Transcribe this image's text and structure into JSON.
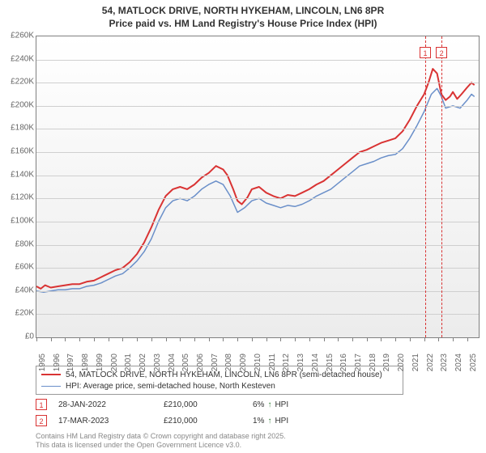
{
  "title_line1": "54, MATLOCK DRIVE, NORTH HYKEHAM, LINCOLN, LN6 8PR",
  "title_line2": "Price paid vs. HM Land Registry's House Price Index (HPI)",
  "chart": {
    "type": "line",
    "background_top": "#ffffff",
    "background_bottom": "#ececec",
    "grid_color": "#cfcfcf",
    "border_color": "#808080",
    "ylim": [
      0,
      260000
    ],
    "ytick_step": 20000,
    "yticks": [
      {
        "v": 0,
        "label": "£0"
      },
      {
        "v": 20000,
        "label": "£20K"
      },
      {
        "v": 40000,
        "label": "£40K"
      },
      {
        "v": 60000,
        "label": "£60K"
      },
      {
        "v": 80000,
        "label": "£80K"
      },
      {
        "v": 100000,
        "label": "£100K"
      },
      {
        "v": 120000,
        "label": "£120K"
      },
      {
        "v": 140000,
        "label": "£140K"
      },
      {
        "v": 160000,
        "label": "£160K"
      },
      {
        "v": 180000,
        "label": "£180K"
      },
      {
        "v": 200000,
        "label": "£200K"
      },
      {
        "v": 220000,
        "label": "£220K"
      },
      {
        "v": 240000,
        "label": "£240K"
      },
      {
        "v": 260000,
        "label": "£260K"
      }
    ],
    "xlim": [
      1995,
      2025.8
    ],
    "xticks": [
      1995,
      1996,
      1997,
      1998,
      1999,
      2000,
      2001,
      2002,
      2003,
      2004,
      2005,
      2006,
      2007,
      2008,
      2009,
      2010,
      2011,
      2012,
      2013,
      2014,
      2015,
      2016,
      2017,
      2018,
      2019,
      2020,
      2021,
      2022,
      2023,
      2024,
      2025
    ],
    "series": [
      {
        "name": "price_paid",
        "label": "54, MATLOCK DRIVE, NORTH HYKEHAM, LINCOLN, LN6 8PR (semi-detached house)",
        "color": "#d93333",
        "width": 2,
        "data": [
          [
            1995.0,
            44000
          ],
          [
            1995.3,
            42000
          ],
          [
            1995.6,
            45000
          ],
          [
            1996.0,
            43000
          ],
          [
            1996.5,
            44000
          ],
          [
            1997.0,
            45000
          ],
          [
            1997.5,
            46000
          ],
          [
            1998.0,
            46000
          ],
          [
            1998.5,
            48000
          ],
          [
            1999.0,
            49000
          ],
          [
            1999.5,
            52000
          ],
          [
            2000.0,
            55000
          ],
          [
            2000.5,
            58000
          ],
          [
            2001.0,
            60000
          ],
          [
            2001.5,
            65000
          ],
          [
            2002.0,
            72000
          ],
          [
            2002.5,
            82000
          ],
          [
            2003.0,
            95000
          ],
          [
            2003.5,
            110000
          ],
          [
            2004.0,
            122000
          ],
          [
            2004.5,
            128000
          ],
          [
            2005.0,
            130000
          ],
          [
            2005.5,
            128000
          ],
          [
            2006.0,
            132000
          ],
          [
            2006.5,
            138000
          ],
          [
            2007.0,
            142000
          ],
          [
            2007.5,
            148000
          ],
          [
            2008.0,
            145000
          ],
          [
            2008.3,
            140000
          ],
          [
            2008.7,
            128000
          ],
          [
            2009.0,
            118000
          ],
          [
            2009.3,
            115000
          ],
          [
            2009.7,
            121000
          ],
          [
            2010.0,
            128000
          ],
          [
            2010.5,
            130000
          ],
          [
            2011.0,
            125000
          ],
          [
            2011.5,
            122000
          ],
          [
            2012.0,
            120000
          ],
          [
            2012.5,
            123000
          ],
          [
            2013.0,
            122000
          ],
          [
            2013.5,
            125000
          ],
          [
            2014.0,
            128000
          ],
          [
            2014.5,
            132000
          ],
          [
            2015.0,
            135000
          ],
          [
            2015.5,
            140000
          ],
          [
            2016.0,
            145000
          ],
          [
            2016.5,
            150000
          ],
          [
            2017.0,
            155000
          ],
          [
            2017.5,
            160000
          ],
          [
            2018.0,
            162000
          ],
          [
            2018.5,
            165000
          ],
          [
            2019.0,
            168000
          ],
          [
            2019.5,
            170000
          ],
          [
            2020.0,
            172000
          ],
          [
            2020.5,
            178000
          ],
          [
            2021.0,
            188000
          ],
          [
            2021.5,
            200000
          ],
          [
            2022.0,
            210000
          ],
          [
            2022.3,
            220000
          ],
          [
            2022.6,
            232000
          ],
          [
            2022.9,
            228000
          ],
          [
            2023.2,
            210000
          ],
          [
            2023.5,
            205000
          ],
          [
            2023.8,
            208000
          ],
          [
            2024.0,
            212000
          ],
          [
            2024.3,
            206000
          ],
          [
            2024.6,
            210000
          ],
          [
            2025.0,
            216000
          ],
          [
            2025.3,
            220000
          ],
          [
            2025.5,
            218000
          ]
        ]
      },
      {
        "name": "hpi",
        "label": "HPI: Average price, semi-detached house, North Kesteven",
        "color": "#6a8fc9",
        "width": 1.5,
        "data": [
          [
            1995.0,
            40000
          ],
          [
            1995.5,
            39000
          ],
          [
            1996.0,
            40000
          ],
          [
            1996.5,
            41000
          ],
          [
            1997.0,
            41000
          ],
          [
            1997.5,
            42000
          ],
          [
            1998.0,
            42000
          ],
          [
            1998.5,
            44000
          ],
          [
            1999.0,
            45000
          ],
          [
            1999.5,
            47000
          ],
          [
            2000.0,
            50000
          ],
          [
            2000.5,
            53000
          ],
          [
            2001.0,
            55000
          ],
          [
            2001.5,
            60000
          ],
          [
            2002.0,
            66000
          ],
          [
            2002.5,
            74000
          ],
          [
            2003.0,
            85000
          ],
          [
            2003.5,
            100000
          ],
          [
            2004.0,
            112000
          ],
          [
            2004.5,
            118000
          ],
          [
            2005.0,
            120000
          ],
          [
            2005.5,
            118000
          ],
          [
            2006.0,
            122000
          ],
          [
            2006.5,
            128000
          ],
          [
            2007.0,
            132000
          ],
          [
            2007.5,
            135000
          ],
          [
            2008.0,
            132000
          ],
          [
            2008.5,
            122000
          ],
          [
            2009.0,
            108000
          ],
          [
            2009.5,
            112000
          ],
          [
            2010.0,
            118000
          ],
          [
            2010.5,
            120000
          ],
          [
            2011.0,
            116000
          ],
          [
            2011.5,
            114000
          ],
          [
            2012.0,
            112000
          ],
          [
            2012.5,
            114000
          ],
          [
            2013.0,
            113000
          ],
          [
            2013.5,
            115000
          ],
          [
            2014.0,
            118000
          ],
          [
            2014.5,
            122000
          ],
          [
            2015.0,
            125000
          ],
          [
            2015.5,
            128000
          ],
          [
            2016.0,
            133000
          ],
          [
            2016.5,
            138000
          ],
          [
            2017.0,
            143000
          ],
          [
            2017.5,
            148000
          ],
          [
            2018.0,
            150000
          ],
          [
            2018.5,
            152000
          ],
          [
            2019.0,
            155000
          ],
          [
            2019.5,
            157000
          ],
          [
            2020.0,
            158000
          ],
          [
            2020.5,
            163000
          ],
          [
            2021.0,
            172000
          ],
          [
            2021.5,
            183000
          ],
          [
            2022.0,
            195000
          ],
          [
            2022.5,
            210000
          ],
          [
            2022.9,
            215000
          ],
          [
            2023.2,
            208000
          ],
          [
            2023.5,
            198000
          ],
          [
            2024.0,
            200000
          ],
          [
            2024.5,
            198000
          ],
          [
            2025.0,
            205000
          ],
          [
            2025.3,
            210000
          ],
          [
            2025.5,
            208000
          ]
        ]
      }
    ],
    "markers": [
      {
        "num": "1",
        "x": 2022.08,
        "color": "#d93333",
        "top_y": 240000
      },
      {
        "num": "2",
        "x": 2023.21,
        "color": "#d93333",
        "top_y": 240000
      }
    ]
  },
  "legend": [
    {
      "color": "#d93333",
      "width": 2,
      "label": "54, MATLOCK DRIVE, NORTH HYKEHAM, LINCOLN, LN6 8PR (semi-detached house)"
    },
    {
      "color": "#6a8fc9",
      "width": 1.5,
      "label": "HPI: Average price, semi-detached house, North Kesteven"
    }
  ],
  "rows": [
    {
      "num": "1",
      "color": "#d93333",
      "date": "28-JAN-2022",
      "price": "£210,000",
      "pct": "6%",
      "arrow": "↑",
      "arrow_color": "#2e7d32",
      "suffix": "HPI"
    },
    {
      "num": "2",
      "color": "#d93333",
      "date": "17-MAR-2023",
      "price": "£210,000",
      "pct": "1%",
      "arrow": "↑",
      "arrow_color": "#2e7d32",
      "suffix": "HPI"
    }
  ],
  "attribution_line1": "Contains HM Land Registry data © Crown copyright and database right 2025.",
  "attribution_line2": "This data is licensed under the Open Government Licence v3.0."
}
